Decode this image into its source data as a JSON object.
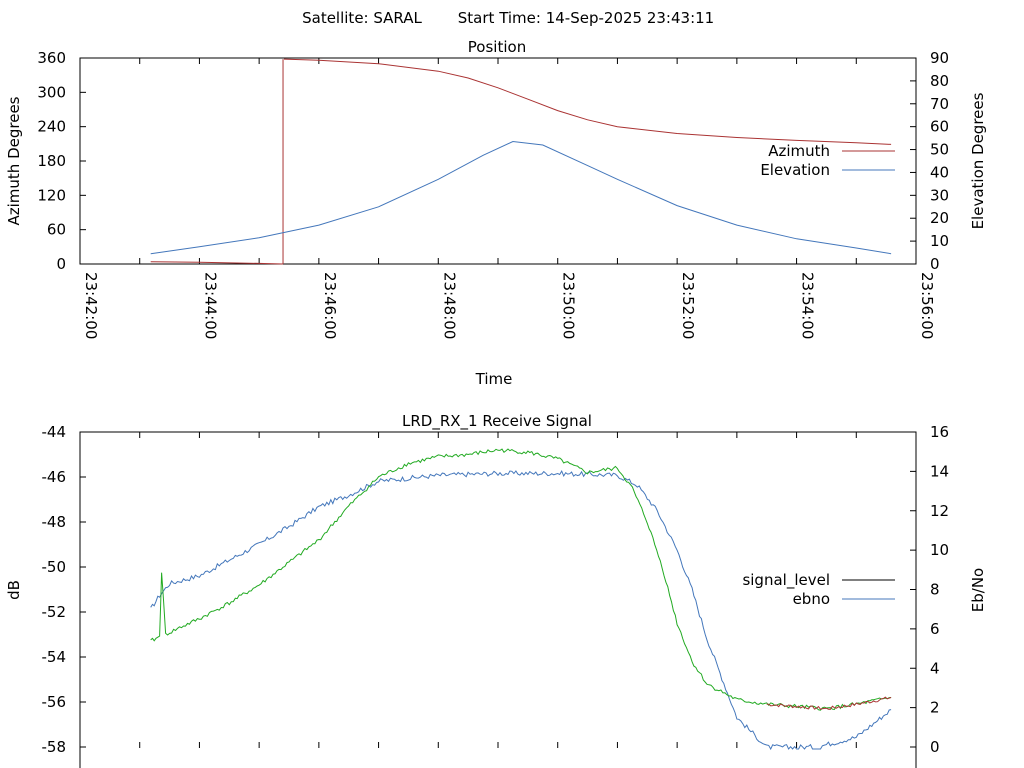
{
  "header": {
    "satellite_label": "Satellite: SARAL",
    "start_time_label": "Start Time: 14-Sep-2025 23:43:11"
  },
  "colors": {
    "azimuth": "#aa3333",
    "elevation": "#4477bb",
    "signal": "#aa3333",
    "ebno": "#22aa22",
    "ebno_legend": "#4477bb",
    "signal_legend": "#000000"
  },
  "chart_data": [
    {
      "type": "line",
      "title": "Position",
      "xlabel": "Time",
      "ylabel": "Azimuth Degrees",
      "y2label": "Elevation Degrees",
      "ylim": [
        0,
        360
      ],
      "y2lim": [
        0,
        90
      ],
      "xlim": [
        "23:42:00",
        "23:56:00"
      ],
      "x_ticks": [
        "23:42:00",
        "23:44:00",
        "23:46:00",
        "23:48:00",
        "23:50:00",
        "23:52:00",
        "23:54:00",
        "23:56:00"
      ],
      "y_ticks": [
        "0",
        "60",
        "120",
        "180",
        "240",
        "300",
        "360"
      ],
      "y2_ticks": [
        "0",
        "10",
        "20",
        "30",
        "40",
        "50",
        "60",
        "70",
        "80",
        "90"
      ],
      "legend_position": "right",
      "series": [
        {
          "name": "Azimuth",
          "axis": "left",
          "x": [
            "23:43:11",
            "23:44:00",
            "23:45:00",
            "23:45:24",
            "23:45:25",
            "23:46:00",
            "23:47:00",
            "23:48:00",
            "23:48:30",
            "23:49:00",
            "23:49:30",
            "23:50:00",
            "23:50:30",
            "23:51:00",
            "23:52:00",
            "23:53:00",
            "23:54:00",
            "23:55:00",
            "23:55:35"
          ],
          "values": [
            4,
            3,
            1,
            0,
            358,
            356,
            350,
            337,
            325,
            308,
            288,
            268,
            252,
            240,
            228,
            221,
            216,
            212,
            209
          ]
        },
        {
          "name": "Elevation",
          "axis": "right",
          "x": [
            "23:43:11",
            "23:44:00",
            "23:45:00",
            "23:46:00",
            "23:47:00",
            "23:48:00",
            "23:48:45",
            "23:49:15",
            "23:49:45",
            "23:50:30",
            "23:51:00",
            "23:52:00",
            "23:53:00",
            "23:54:00",
            "23:55:00",
            "23:55:35"
          ],
          "values": [
            4.5,
            7.5,
            11.5,
            17,
            25,
            37,
            47.5,
            53.5,
            52,
            43,
            37,
            25.5,
            17,
            11,
            7,
            4.5
          ]
        }
      ]
    },
    {
      "type": "line",
      "title": "LRD_RX_1 Receive Signal",
      "ylabel": "dB",
      "y2label": "Eb/No",
      "ylim": [
        -58,
        -44
      ],
      "y2lim": [
        0,
        16
      ],
      "xlim": [
        "23:42:00",
        "23:56:00"
      ],
      "y_ticks": [
        "-44",
        "-46",
        "-48",
        "-50",
        "-52",
        "-54",
        "-56",
        "-58"
      ],
      "y2_ticks": [
        "0",
        "2",
        "4",
        "6",
        "8",
        "10",
        "12",
        "14",
        "16"
      ],
      "legend_position": "right",
      "series": [
        {
          "name": "signal_level",
          "axis": "left",
          "x": [
            "23:43:11",
            "23:43:20",
            "23:43:22",
            "23:43:26",
            "23:43:40",
            "23:44:00",
            "23:44:30",
            "23:45:00",
            "23:45:30",
            "23:46:00",
            "23:46:30",
            "23:47:00",
            "23:47:30",
            "23:48:00",
            "23:48:30",
            "23:49:00",
            "23:49:30",
            "23:50:00",
            "23:50:30",
            "23:51:00",
            "23:51:15",
            "23:51:30",
            "23:51:45",
            "23:52:00",
            "23:52:15",
            "23:52:30",
            "23:53:00",
            "23:53:30",
            "23:54:00",
            "23:54:30",
            "23:55:00",
            "23:55:35"
          ],
          "values": [
            -53.3,
            -53.1,
            -50.2,
            -53.0,
            -52.7,
            -52.3,
            -51.6,
            -50.8,
            -49.8,
            -48.8,
            -47.3,
            -46.0,
            -45.4,
            -45.1,
            -45.0,
            -44.8,
            -44.9,
            -45.2,
            -45.8,
            -45.6,
            -46.5,
            -48.0,
            -50.0,
            -52.5,
            -54.2,
            -55.2,
            -55.9,
            -56.1,
            -56.2,
            -56.3,
            -56.1,
            -55.8
          ]
        },
        {
          "name": "ebno",
          "axis": "right",
          "x": [
            "23:43:11",
            "23:43:20",
            "23:43:30",
            "23:44:00",
            "23:44:30",
            "23:45:00",
            "23:45:30",
            "23:46:00",
            "23:46:30",
            "23:47:00",
            "23:48:00",
            "23:49:00",
            "23:50:00",
            "23:51:00",
            "23:51:20",
            "23:51:40",
            "23:52:00",
            "23:52:15",
            "23:52:30",
            "23:52:45",
            "23:53:00",
            "23:53:30",
            "23:54:00",
            "23:54:20",
            "23:55:00",
            "23:55:35"
          ],
          "values": [
            7.0,
            7.7,
            8.3,
            8.7,
            9.5,
            10.3,
            11.2,
            12.2,
            12.8,
            13.5,
            13.8,
            13.9,
            13.9,
            13.8,
            13.3,
            12.0,
            10.0,
            8.0,
            5.5,
            3.5,
            1.5,
            0,
            0,
            0,
            0.5,
            1.9
          ]
        }
      ]
    }
  ]
}
